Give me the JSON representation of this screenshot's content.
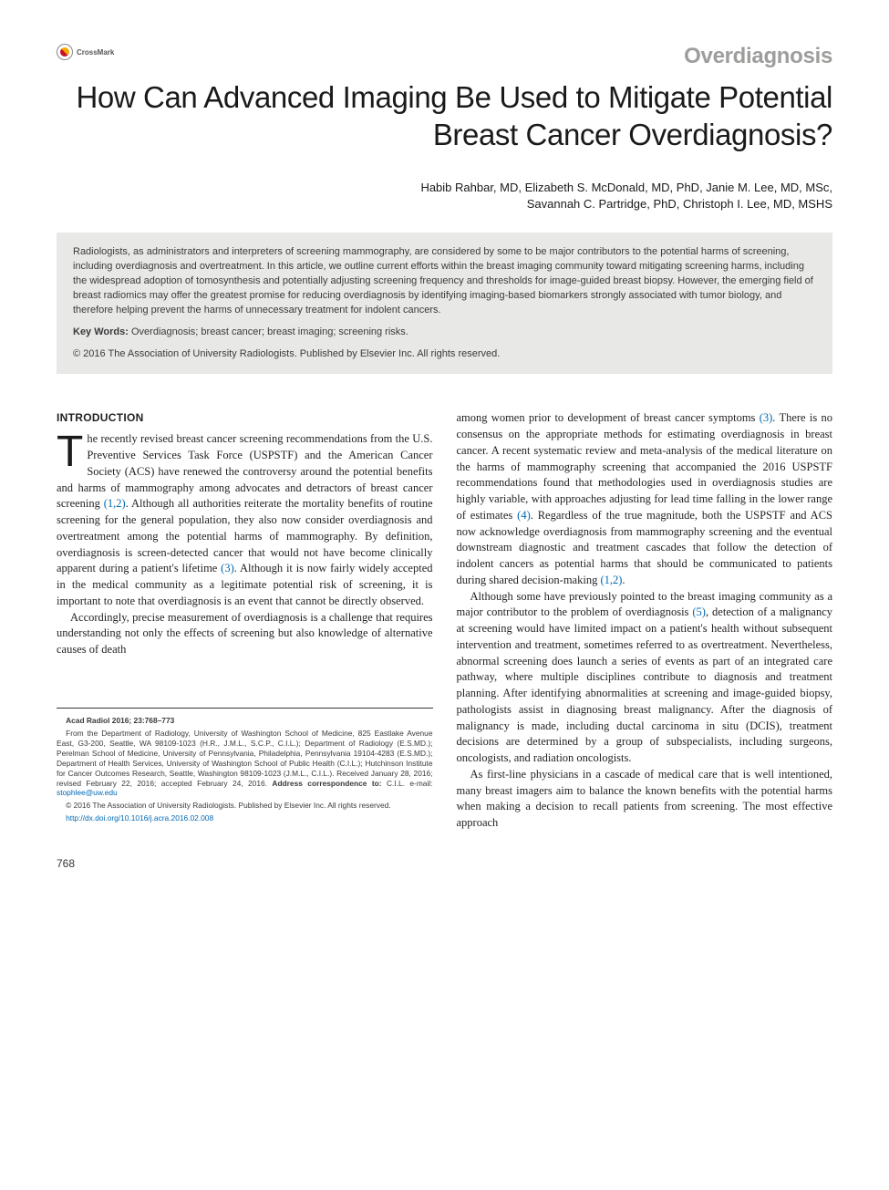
{
  "crossmark_label": "CrossMark",
  "section_label": "Overdiagnosis",
  "title": "How Can Advanced Imaging Be Used to Mitigate Potential Breast Cancer Overdiagnosis?",
  "authors_line1": "Habib Rahbar, MD, Elizabeth S. McDonald, MD, PhD, Janie M. Lee, MD, MSc,",
  "authors_line2": "Savannah C. Partridge, PhD, Christoph I. Lee, MD, MSHS",
  "abstract": {
    "body": "Radiologists, as administrators and interpreters of screening mammography, are considered by some to be major contributors to the potential harms of screening, including overdiagnosis and overtreatment. In this article, we outline current efforts within the breast imaging community toward mitigating screening harms, including the widespread adoption of tomosynthesis and potentially adjusting screening frequency and thresholds for image-guided breast biopsy. However, the emerging field of breast radiomics may offer the greatest promise for reducing overdiagnosis by identifying imaging-based biomarkers strongly associated with tumor biology, and therefore helping prevent the harms of unnecessary treatment for indolent cancers.",
    "keywords_label": "Key Words:",
    "keywords": "Overdiagnosis; breast cancer; breast imaging; screening risks.",
    "copyright": "© 2016 The Association of University Radiologists. Published by Elsevier Inc. All rights reserved."
  },
  "intro_heading": "INTRODUCTION",
  "left_col": {
    "p1_dropcap": "T",
    "p1": "he recently revised breast cancer screening recommendations from the U.S. Preventive Services Task Force (USPSTF) and the American Cancer Society (ACS) have renewed the controversy around the potential benefits and harms of mammography among advocates and detractors of breast cancer screening ",
    "p1_cite": "(1,2)",
    "p1b": ". Although all authorities reiterate the mortality benefits of routine screening for the general population, they also now consider overdiagnosis and overtreatment among the potential harms of mammography. By definition, overdiagnosis is screen-detected cancer that would not have become clinically apparent during a patient's lifetime ",
    "p1_cite2": "(3)",
    "p1c": ". Although it is now fairly widely accepted in the medical community as a legitimate potential risk of screening, it is important to note that overdiagnosis is an event that cannot be directly observed.",
    "p2": "Accordingly, precise measurement of overdiagnosis is a challenge that requires understanding not only the effects of screening but also knowledge of alternative causes of death"
  },
  "right_col": {
    "p1": "among women prior to development of breast cancer symptoms ",
    "p1_cite": "(3)",
    "p1b": ". There is no consensus on the appropriate methods for estimating overdiagnosis in breast cancer. A recent systematic review and meta-analysis of the medical literature on the harms of mammography screening that accompanied the 2016 USPSTF recommendations found that methodologies used in overdiagnosis studies are highly variable, with approaches adjusting for lead time falling in the lower range of estimates ",
    "p1_cite2": "(4)",
    "p1c": ". Regardless of the true magnitude, both the USPSTF and ACS now acknowledge overdiagnosis from mammography screening and the eventual downstream diagnostic and treatment cascades that follow the detection of indolent cancers as potential harms that should be communicated to patients during shared decision-making ",
    "p1_cite3": "(1,2)",
    "p1d": ".",
    "p2": "Although some have previously pointed to the breast imaging community as a major contributor to the problem of overdiagnosis ",
    "p2_cite": "(5)",
    "p2b": ", detection of a malignancy at screening would have limited impact on a patient's health without subsequent intervention and treatment, sometimes referred to as overtreatment. Nevertheless, abnormal screening does launch a series of events as part of an integrated care pathway, where multiple disciplines contribute to diagnosis and treatment planning. After identifying abnormalities at screening and image-guided biopsy, pathologists assist in diagnosing breast malignancy. After the diagnosis of malignancy is made, including ductal carcinoma in situ (DCIS), treatment decisions are determined by a group of subspecialists, including surgeons, oncologists, and radiation oncologists.",
    "p3": "As first-line physicians in a cascade of medical care that is well intentioned, many breast imagers aim to balance the known benefits with the potential harms when making a decision to recall patients from screening. The most effective approach"
  },
  "footnote": {
    "citation": "Acad Radiol 2016; 23:768–773",
    "affil": "From the Department of Radiology, University of Washington School of Medicine, 825 Eastlake Avenue East, G3-200, Seattle, WA 98109-1023 (H.R., J.M.L., S.C.P., C.I.L.); Department of Radiology (E.S.MD.); Perelman School of Medicine, University of Pennsylvania, Philadelphia, Pennsylvania 19104-4283 (E.S.MD.); Department of Health Services, University of Washington School of Public Health (C.I.L.); Hutchinson Institute for Cancer Outcomes Research, Seattle, Washington 98109-1023 (J.M.L., C.I.L.). Received January 28, 2016; revised February 22, 2016; accepted February 24, 2016. ",
    "corr_label": "Address correspondence to:",
    "corr": " C.I.L. e-mail: ",
    "email": "stophlee@uw.edu",
    "rights": "© 2016 The Association of University Radiologists. Published by Elsevier Inc. All rights reserved.",
    "doi": "http://dx.doi.org/10.1016/j.acra.2016.02.008"
  },
  "page_number": "768",
  "colors": {
    "text": "#231f20",
    "section_label": "#9d9d9c",
    "abstract_bg": "#e8e8e7",
    "link": "#0068b3"
  },
  "typography": {
    "title_fontsize": 33,
    "section_fontsize": 24,
    "authors_fontsize": 13,
    "abstract_fontsize": 11,
    "body_fontsize": 12.5,
    "footnote_fontsize": 8.4
  }
}
